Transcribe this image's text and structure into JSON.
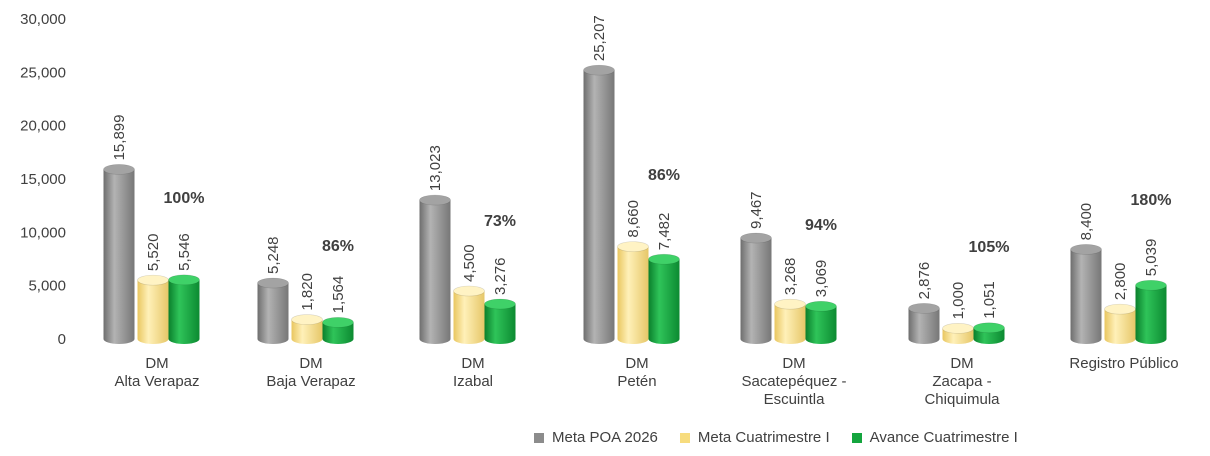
{
  "chart_data": {
    "type": "bar",
    "categories": [
      [
        "DM",
        "Alta Verapaz"
      ],
      [
        "DM",
        "Baja Verapaz"
      ],
      [
        "DM",
        "Izabal"
      ],
      [
        "DM",
        "Petén"
      ],
      [
        "DM",
        "Sacatepéquez -",
        "Escuintla"
      ],
      [
        "DM",
        "Zacapa -",
        "Chiquimula"
      ],
      [
        "Registro Público"
      ]
    ],
    "series": [
      {
        "name": "Meta POA 2026",
        "color": "#8c8c8c",
        "values": [
          15899,
          5248,
          13023,
          25207,
          9467,
          2876,
          8400
        ],
        "labels": [
          "15,899",
          "5,248",
          "13,023",
          "25,207",
          "9,467",
          "2,876",
          "8,400"
        ]
      },
      {
        "name": "Meta Cuatrimestre I",
        "color": "#f7dc7e",
        "values": [
          5520,
          1820,
          4500,
          8660,
          3268,
          1000,
          2800
        ],
        "labels": [
          "5,520",
          "1,820",
          "4,500",
          "8,660",
          "3,268",
          "1,000",
          "2,800"
        ]
      },
      {
        "name": "Avance Cuatrimestre I",
        "color": "#14a53e",
        "values": [
          5546,
          1564,
          3276,
          7482,
          3069,
          1051,
          5039
        ],
        "labels": [
          "5,546",
          "1,564",
          "3,276",
          "7,482",
          "3,069",
          "1,051",
          "5,039"
        ]
      }
    ],
    "percentages": [
      "100%",
      "86%",
      "73%",
      "86%",
      "94%",
      "105%",
      "180%"
    ],
    "ylim": [
      0,
      30000
    ],
    "yticks": [
      "0",
      "5,000",
      "10,000",
      "15,000",
      "20,000",
      "25,000",
      "30,000"
    ],
    "title": "",
    "xlabel": "",
    "ylabel": "",
    "legend_position": "bottom-right",
    "grid": false
  }
}
